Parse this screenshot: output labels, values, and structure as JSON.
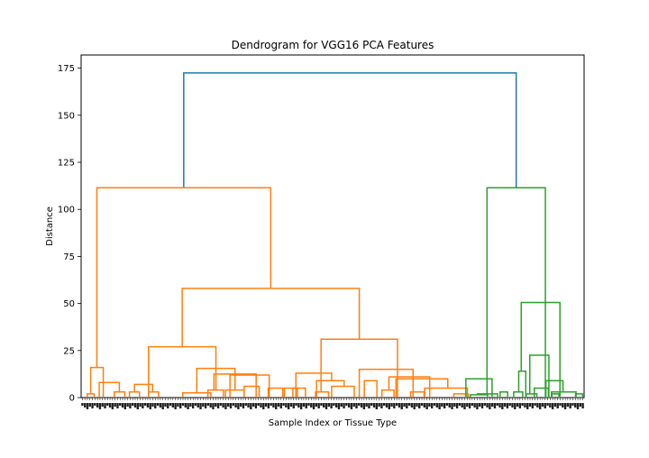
{
  "chart_data": {
    "type": "dendrogram",
    "title": "Dendrogram for VGG16 PCA Features",
    "xlabel": "Sample Index or Tissue Type",
    "ylabel": "Distance",
    "ylim": [
      0,
      182
    ],
    "yticks": [
      0,
      25,
      50,
      75,
      100,
      125,
      150,
      175
    ],
    "leaf_count": 200,
    "leaf_labels_visible": false,
    "colors": {
      "root": "#1f77b4",
      "cluster_1": "#ff7f0e",
      "cluster_2": "#2ca02c"
    },
    "links": [
      {
        "left": 0.204,
        "right": 0.865,
        "height": 172.5,
        "cluster": "root"
      },
      {
        "left": 0.0313,
        "right": 0.377,
        "height": 111.5,
        "cluster": "cluster_1"
      },
      {
        "left": 0.807,
        "right": 0.923,
        "height": 111.5,
        "cluster": "cluster_2"
      },
      {
        "left": 0.201,
        "right": 0.553,
        "height": 58,
        "cluster": "cluster_1"
      },
      {
        "left": 0.134,
        "right": 0.268,
        "height": 27,
        "cluster": "cluster_1"
      },
      {
        "left": 0.477,
        "right": 0.629,
        "height": 31,
        "cluster": "cluster_1"
      },
      {
        "left": 0.019,
        "right": 0.044,
        "height": 16,
        "cluster": "cluster_1"
      },
      {
        "left": 0.012,
        "right": 0.026,
        "height": 2,
        "cluster": "cluster_1"
      },
      {
        "left": 0.036,
        "right": 0.076,
        "height": 8,
        "cluster": "cluster_1"
      },
      {
        "left": 0.066,
        "right": 0.087,
        "height": 3,
        "cluster": "cluster_1"
      },
      {
        "left": 0.106,
        "right": 0.142,
        "height": 7,
        "cluster": "cluster_1"
      },
      {
        "left": 0.096,
        "right": 0.116,
        "height": 3,
        "cluster": "cluster_1"
      },
      {
        "left": 0.134,
        "right": 0.154,
        "height": 3,
        "cluster": "cluster_1"
      },
      {
        "left": 0.23,
        "right": 0.306,
        "height": 15.5,
        "cluster": "cluster_1"
      },
      {
        "left": 0.202,
        "right": 0.258,
        "height": 2.5,
        "cluster": "cluster_1"
      },
      {
        "left": 0.264,
        "right": 0.348,
        "height": 12.5,
        "cluster": "cluster_1"
      },
      {
        "left": 0.252,
        "right": 0.283,
        "height": 4,
        "cluster": "cluster_1"
      },
      {
        "left": 0.296,
        "right": 0.374,
        "height": 12,
        "cluster": "cluster_1"
      },
      {
        "left": 0.324,
        "right": 0.354,
        "height": 6,
        "cluster": "cluster_1"
      },
      {
        "left": 0.287,
        "right": 0.324,
        "height": 4,
        "cluster": "cluster_1"
      },
      {
        "left": 0.372,
        "right": 0.401,
        "height": 5,
        "cluster": "cluster_1"
      },
      {
        "left": 0.404,
        "right": 0.43,
        "height": 5,
        "cluster": "cluster_1"
      },
      {
        "left": 0.427,
        "right": 0.498,
        "height": 13,
        "cluster": "cluster_1"
      },
      {
        "left": 0.421,
        "right": 0.446,
        "height": 5,
        "cluster": "cluster_1"
      },
      {
        "left": 0.468,
        "right": 0.523,
        "height": 9,
        "cluster": "cluster_1"
      },
      {
        "left": 0.498,
        "right": 0.543,
        "height": 6,
        "cluster": "cluster_1"
      },
      {
        "left": 0.466,
        "right": 0.492,
        "height": 3,
        "cluster": "cluster_1"
      },
      {
        "left": 0.553,
        "right": 0.66,
        "height": 15,
        "cluster": "cluster_1"
      },
      {
        "left": 0.563,
        "right": 0.588,
        "height": 9,
        "cluster": "cluster_1"
      },
      {
        "left": 0.612,
        "right": 0.693,
        "height": 11,
        "cluster": "cluster_1"
      },
      {
        "left": 0.626,
        "right": 0.729,
        "height": 10,
        "cluster": "cluster_1"
      },
      {
        "left": 0.683,
        "right": 0.768,
        "height": 5,
        "cluster": "cluster_1"
      },
      {
        "left": 0.598,
        "right": 0.622,
        "height": 4,
        "cluster": "cluster_1"
      },
      {
        "left": 0.655,
        "right": 0.682,
        "height": 3,
        "cluster": "cluster_1"
      },
      {
        "left": 0.741,
        "right": 0.77,
        "height": 2,
        "cluster": "cluster_1"
      },
      {
        "left": 0.765,
        "right": 0.817,
        "height": 10,
        "cluster": "cluster_2"
      },
      {
        "left": 0.774,
        "right": 0.808,
        "height": 1.5,
        "cluster": "cluster_2"
      },
      {
        "left": 0.875,
        "right": 0.952,
        "height": 50.5,
        "cluster": "cluster_2"
      },
      {
        "left": 0.892,
        "right": 0.93,
        "height": 22.5,
        "cluster": "cluster_2"
      },
      {
        "left": 0.885,
        "right": 0.906,
        "height": 2,
        "cluster": "cluster_2"
      },
      {
        "left": 0.924,
        "right": 0.958,
        "height": 9,
        "cluster": "cluster_2"
      },
      {
        "left": 0.935,
        "right": 0.984,
        "height": 3,
        "cluster": "cluster_2"
      },
      {
        "left": 0.87,
        "right": 0.884,
        "height": 14,
        "cluster": "cluster_2"
      },
      {
        "left": 0.86,
        "right": 0.878,
        "height": 3,
        "cluster": "cluster_2"
      },
      {
        "left": 0.901,
        "right": 0.929,
        "height": 5,
        "cluster": "cluster_2"
      },
      {
        "left": 0.936,
        "right": 0.95,
        "height": 2,
        "cluster": "cluster_2"
      },
      {
        "left": 0.983,
        "right": 0.997,
        "height": 2,
        "cluster": "cluster_2"
      },
      {
        "left": 0.833,
        "right": 0.848,
        "height": 3,
        "cluster": "cluster_2"
      },
      {
        "left": 0.788,
        "right": 0.828,
        "height": 2,
        "cluster": "cluster_2"
      }
    ]
  }
}
